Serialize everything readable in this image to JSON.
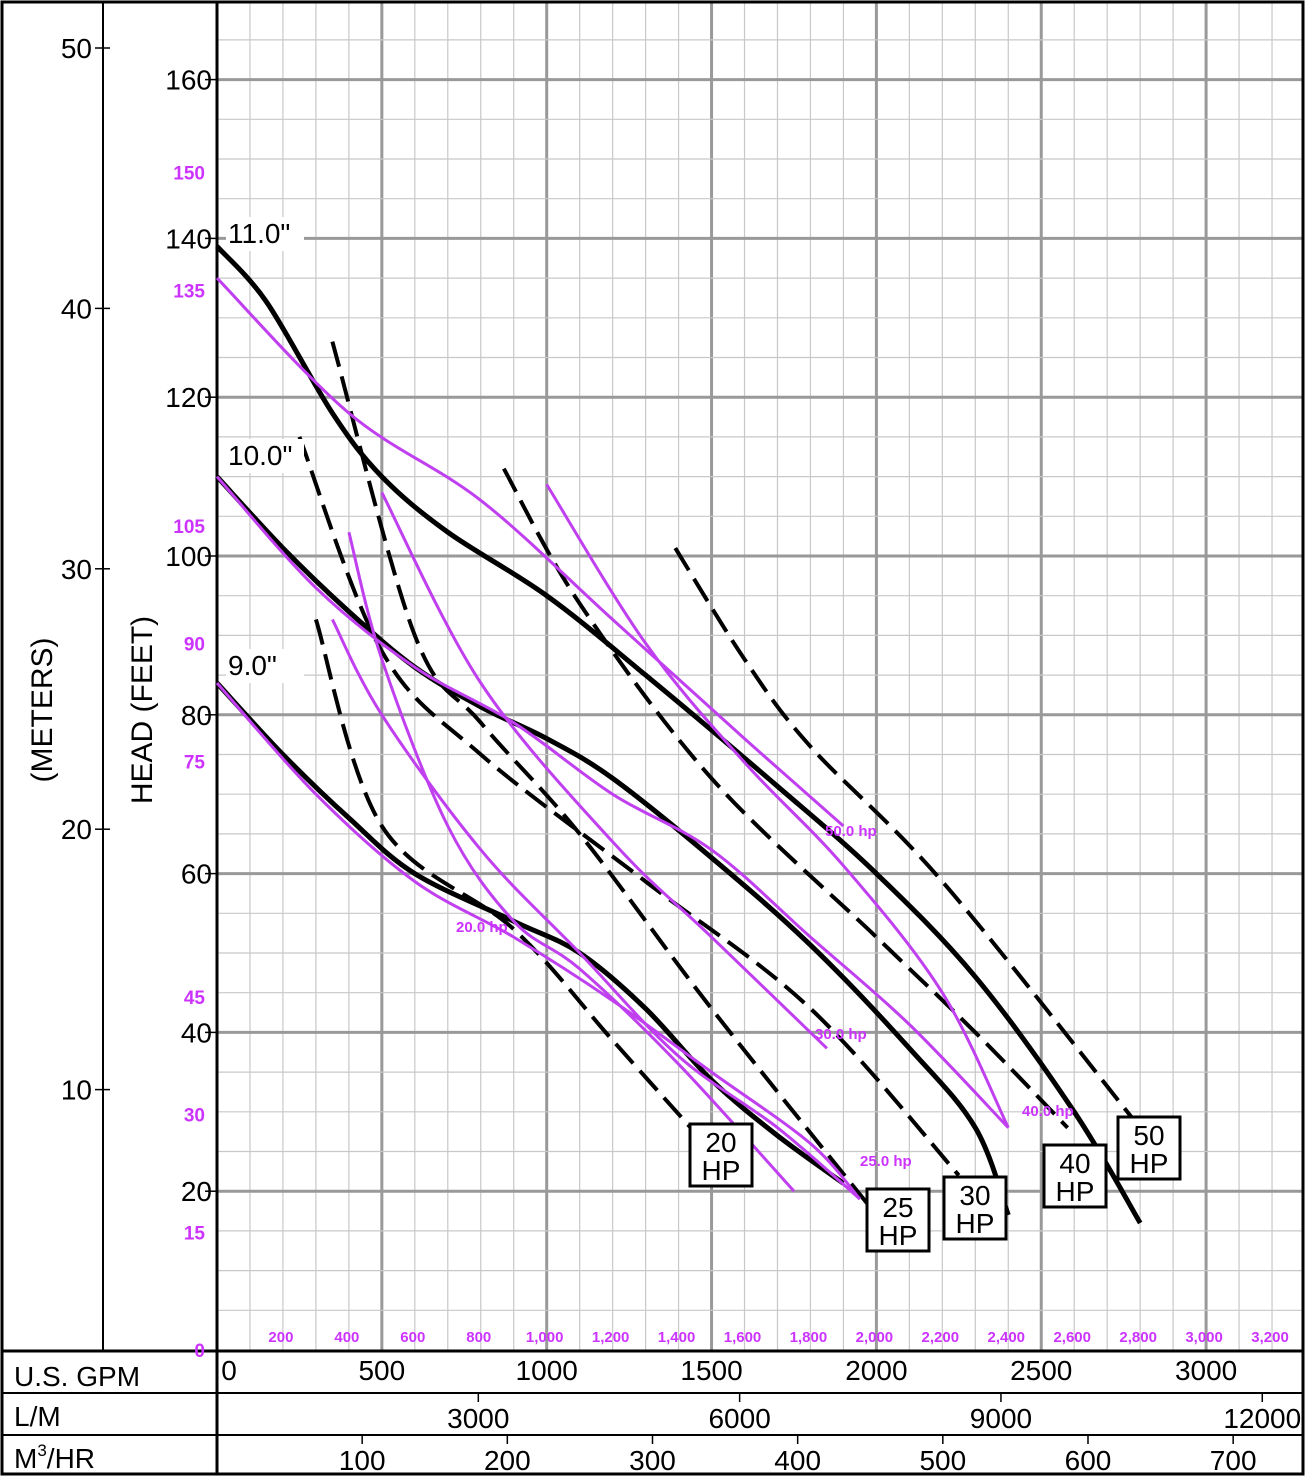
{
  "chart_data": {
    "type": "line",
    "ylabel": "HEAD (FEET)",
    "ylabel_metric": "(METERS)",
    "xlim": [
      0,
      3300
    ],
    "ylim": [
      0,
      166
    ],
    "feet_ticks": [
      "20",
      "40",
      "60",
      "80",
      "100",
      "120",
      "140",
      "160"
    ],
    "meter_ticks": [
      "10",
      "20",
      "30",
      "40",
      "50"
    ],
    "psi_ticks": [
      "0",
      "15",
      "30",
      "45",
      "75",
      "90",
      "105",
      "135",
      "150"
    ],
    "gpm_ticks": [
      "0",
      "500",
      "1000",
      "1500",
      "2000",
      "2500",
      "3000"
    ],
    "lpm_ticks": [
      "3000",
      "6000",
      "9000",
      "12000"
    ],
    "m3hr_ticks": [
      "100",
      "200",
      "300",
      "400",
      "500",
      "600",
      "700"
    ],
    "gpm_fine_ticks": [
      "200",
      "400",
      "600",
      "800",
      "1,000",
      "1,200",
      "1,400",
      "1,600",
      "1,800",
      "2,000",
      "2,200",
      "2,400",
      "2,600",
      "2,800",
      "3,000",
      "3,200"
    ],
    "flow_scales": {
      "gpm": "U.S. GPM",
      "lpm": "L/M",
      "m3hr_base": "M",
      "m3hr_sup": "3",
      "m3hr_rest": "/HR"
    },
    "impeller_curves": [
      {
        "name": "11.0\"",
        "points": [
          [
            0,
            139
          ],
          [
            150,
            132
          ],
          [
            350,
            118
          ],
          [
            500,
            110
          ],
          [
            700,
            103
          ],
          [
            1000,
            95
          ],
          [
            1300,
            85
          ],
          [
            1700,
            71
          ],
          [
            2000,
            60
          ],
          [
            2300,
            47
          ],
          [
            2600,
            30
          ],
          [
            2800,
            16
          ]
        ]
      },
      {
        "name": "10.0\"",
        "points": [
          [
            0,
            110
          ],
          [
            200,
            101
          ],
          [
            400,
            93
          ],
          [
            600,
            86
          ],
          [
            800,
            81
          ],
          [
            1000,
            77
          ],
          [
            1200,
            72
          ],
          [
            1500,
            62
          ],
          [
            1800,
            51
          ],
          [
            2100,
            38
          ],
          [
            2300,
            28
          ],
          [
            2400,
            17
          ]
        ]
      },
      {
        "name": "9.0\"",
        "points": [
          [
            0,
            84
          ],
          [
            200,
            75
          ],
          [
            400,
            67
          ],
          [
            600,
            60
          ],
          [
            900,
            54
          ],
          [
            1100,
            50
          ],
          [
            1300,
            43
          ],
          [
            1500,
            34
          ],
          [
            1700,
            27
          ],
          [
            1900,
            21
          ]
        ]
      }
    ],
    "hp_limit_lines": [
      {
        "label_top": "20",
        "label_bot": "HP",
        "points": [
          [
            300,
            92
          ],
          [
            500,
            66
          ],
          [
            900,
            53
          ],
          [
            1200,
            39
          ],
          [
            1480,
            26
          ]
        ]
      },
      {
        "label_top": "25",
        "label_bot": "HP",
        "points": [
          [
            350,
            127
          ],
          [
            600,
            90
          ],
          [
            800,
            79
          ],
          [
            1100,
            65
          ],
          [
            1500,
            43
          ],
          [
            2000,
            17
          ]
        ]
      },
      {
        "label_top": "30",
        "label_bot": "HP",
        "points": [
          [
            250,
            115
          ],
          [
            500,
            88
          ],
          [
            800,
            75
          ],
          [
            1300,
            59
          ],
          [
            1800,
            43
          ],
          [
            2250,
            22
          ]
        ]
      },
      {
        "label_top": "40",
        "label_bot": "HP",
        "points": [
          [
            870,
            111
          ],
          [
            1100,
            94
          ],
          [
            1500,
            72
          ],
          [
            2000,
            52
          ],
          [
            2300,
            40
          ],
          [
            2580,
            28
          ]
        ]
      },
      {
        "label_top": "50",
        "label_bot": "HP",
        "points": [
          [
            1390,
            101
          ],
          [
            1600,
            87
          ],
          [
            1800,
            76
          ],
          [
            2200,
            59
          ],
          [
            2780,
            29
          ]
        ]
      }
    ],
    "power_curves": [
      {
        "label": "20.0 hp",
        "points": [
          [
            400,
            103
          ],
          [
            500,
            87
          ],
          [
            700,
            66
          ],
          [
            900,
            54
          ],
          [
            1100,
            48
          ],
          [
            1400,
            36
          ],
          [
            1750,
            20
          ]
        ]
      },
      {
        "label": "25.0 hp",
        "points": [
          [
            350,
            92
          ],
          [
            500,
            80
          ],
          [
            800,
            63
          ],
          [
            1100,
            50
          ],
          [
            1400,
            37
          ],
          [
            1700,
            28
          ],
          [
            1950,
            19
          ]
        ]
      },
      {
        "label": "30.0 hp",
        "points": [
          [
            500,
            108
          ],
          [
            800,
            84
          ],
          [
            1200,
            64
          ],
          [
            1500,
            52
          ],
          [
            1850,
            38
          ]
        ]
      },
      {
        "label": "40.0 hp",
        "points": [
          [
            1000,
            109
          ],
          [
            1300,
            89
          ],
          [
            1600,
            74
          ],
          [
            1900,
            61
          ],
          [
            2200,
            45
          ],
          [
            2400,
            28
          ]
        ]
      },
      {
        "label": "50.0 hp",
        "points": [
          [
            0,
            135
          ],
          [
            400,
            118
          ],
          [
            800,
            107
          ],
          [
            1200,
            92
          ],
          [
            1600,
            77
          ],
          [
            1900,
            66
          ]
        ]
      }
    ],
    "power_curves_lower": [
      {
        "points": [
          [
            0,
            110
          ],
          [
            300,
            96
          ],
          [
            600,
            86
          ],
          [
            900,
            79
          ],
          [
            1200,
            70
          ],
          [
            1500,
            63
          ],
          [
            1800,
            52
          ],
          [
            2100,
            41
          ],
          [
            2400,
            28
          ]
        ]
      },
      {
        "points": [
          [
            0,
            84
          ],
          [
            300,
            70
          ],
          [
            600,
            59
          ],
          [
            900,
            52
          ],
          [
            1200,
            44
          ],
          [
            1500,
            35
          ],
          [
            1800,
            26
          ],
          [
            1950,
            19
          ]
        ]
      }
    ]
  }
}
